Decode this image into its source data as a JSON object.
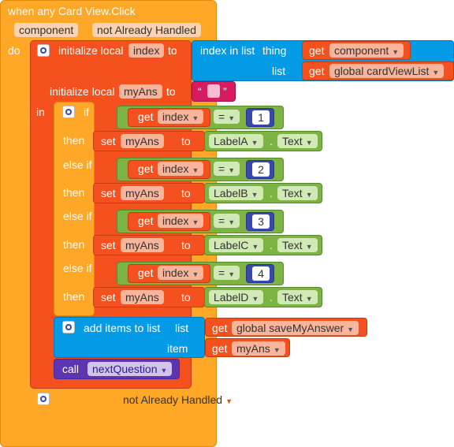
{
  "event": {
    "title": "when any Card View.Click",
    "params": [
      "component",
      "not Already Handled"
    ],
    "do_label": "do",
    "in_label": "in"
  },
  "local_index": {
    "label": "initialize local",
    "var": "index",
    "to": "to",
    "call": "index in list",
    "thing_label": "thing",
    "list_label": "list",
    "get": "get",
    "thing_value": "component",
    "list_value": "global cardViewList"
  },
  "local_myAns": {
    "label": "initialize local",
    "var": "myAns",
    "to": "to",
    "quote_open": "“",
    "quote_close": "”"
  },
  "if_block": {
    "if": "if",
    "else_if": "else if",
    "then": "then",
    "get": "get",
    "var": "index",
    "op": "=",
    "set": "set",
    "set_var": "myAns",
    "to": "to",
    "dot": ".",
    "prop": "Text",
    "branches": [
      {
        "num": "1",
        "label_comp": "LabelA"
      },
      {
        "num": "2",
        "label_comp": "LabelB"
      },
      {
        "num": "3",
        "label_comp": "LabelC"
      },
      {
        "num": "4",
        "label_comp": "LabelD"
      }
    ]
  },
  "add_items": {
    "label": "add items to list",
    "list_label": "list",
    "item_label": "item",
    "get": "get",
    "list_value": "global saveMyAnswer",
    "item_value": "myAns"
  },
  "call_block": {
    "call": "call",
    "proc": "nextQuestion"
  },
  "bottom": {
    "label": "not Already Handled"
  },
  "colors": {
    "event": "#ffa726",
    "local": "#f4511e",
    "control": "#ffa726",
    "logic": "#7cb342",
    "list": "#039be5",
    "math": "#3949ab",
    "proc": "#5e35b1",
    "text": "#d81b60"
  }
}
